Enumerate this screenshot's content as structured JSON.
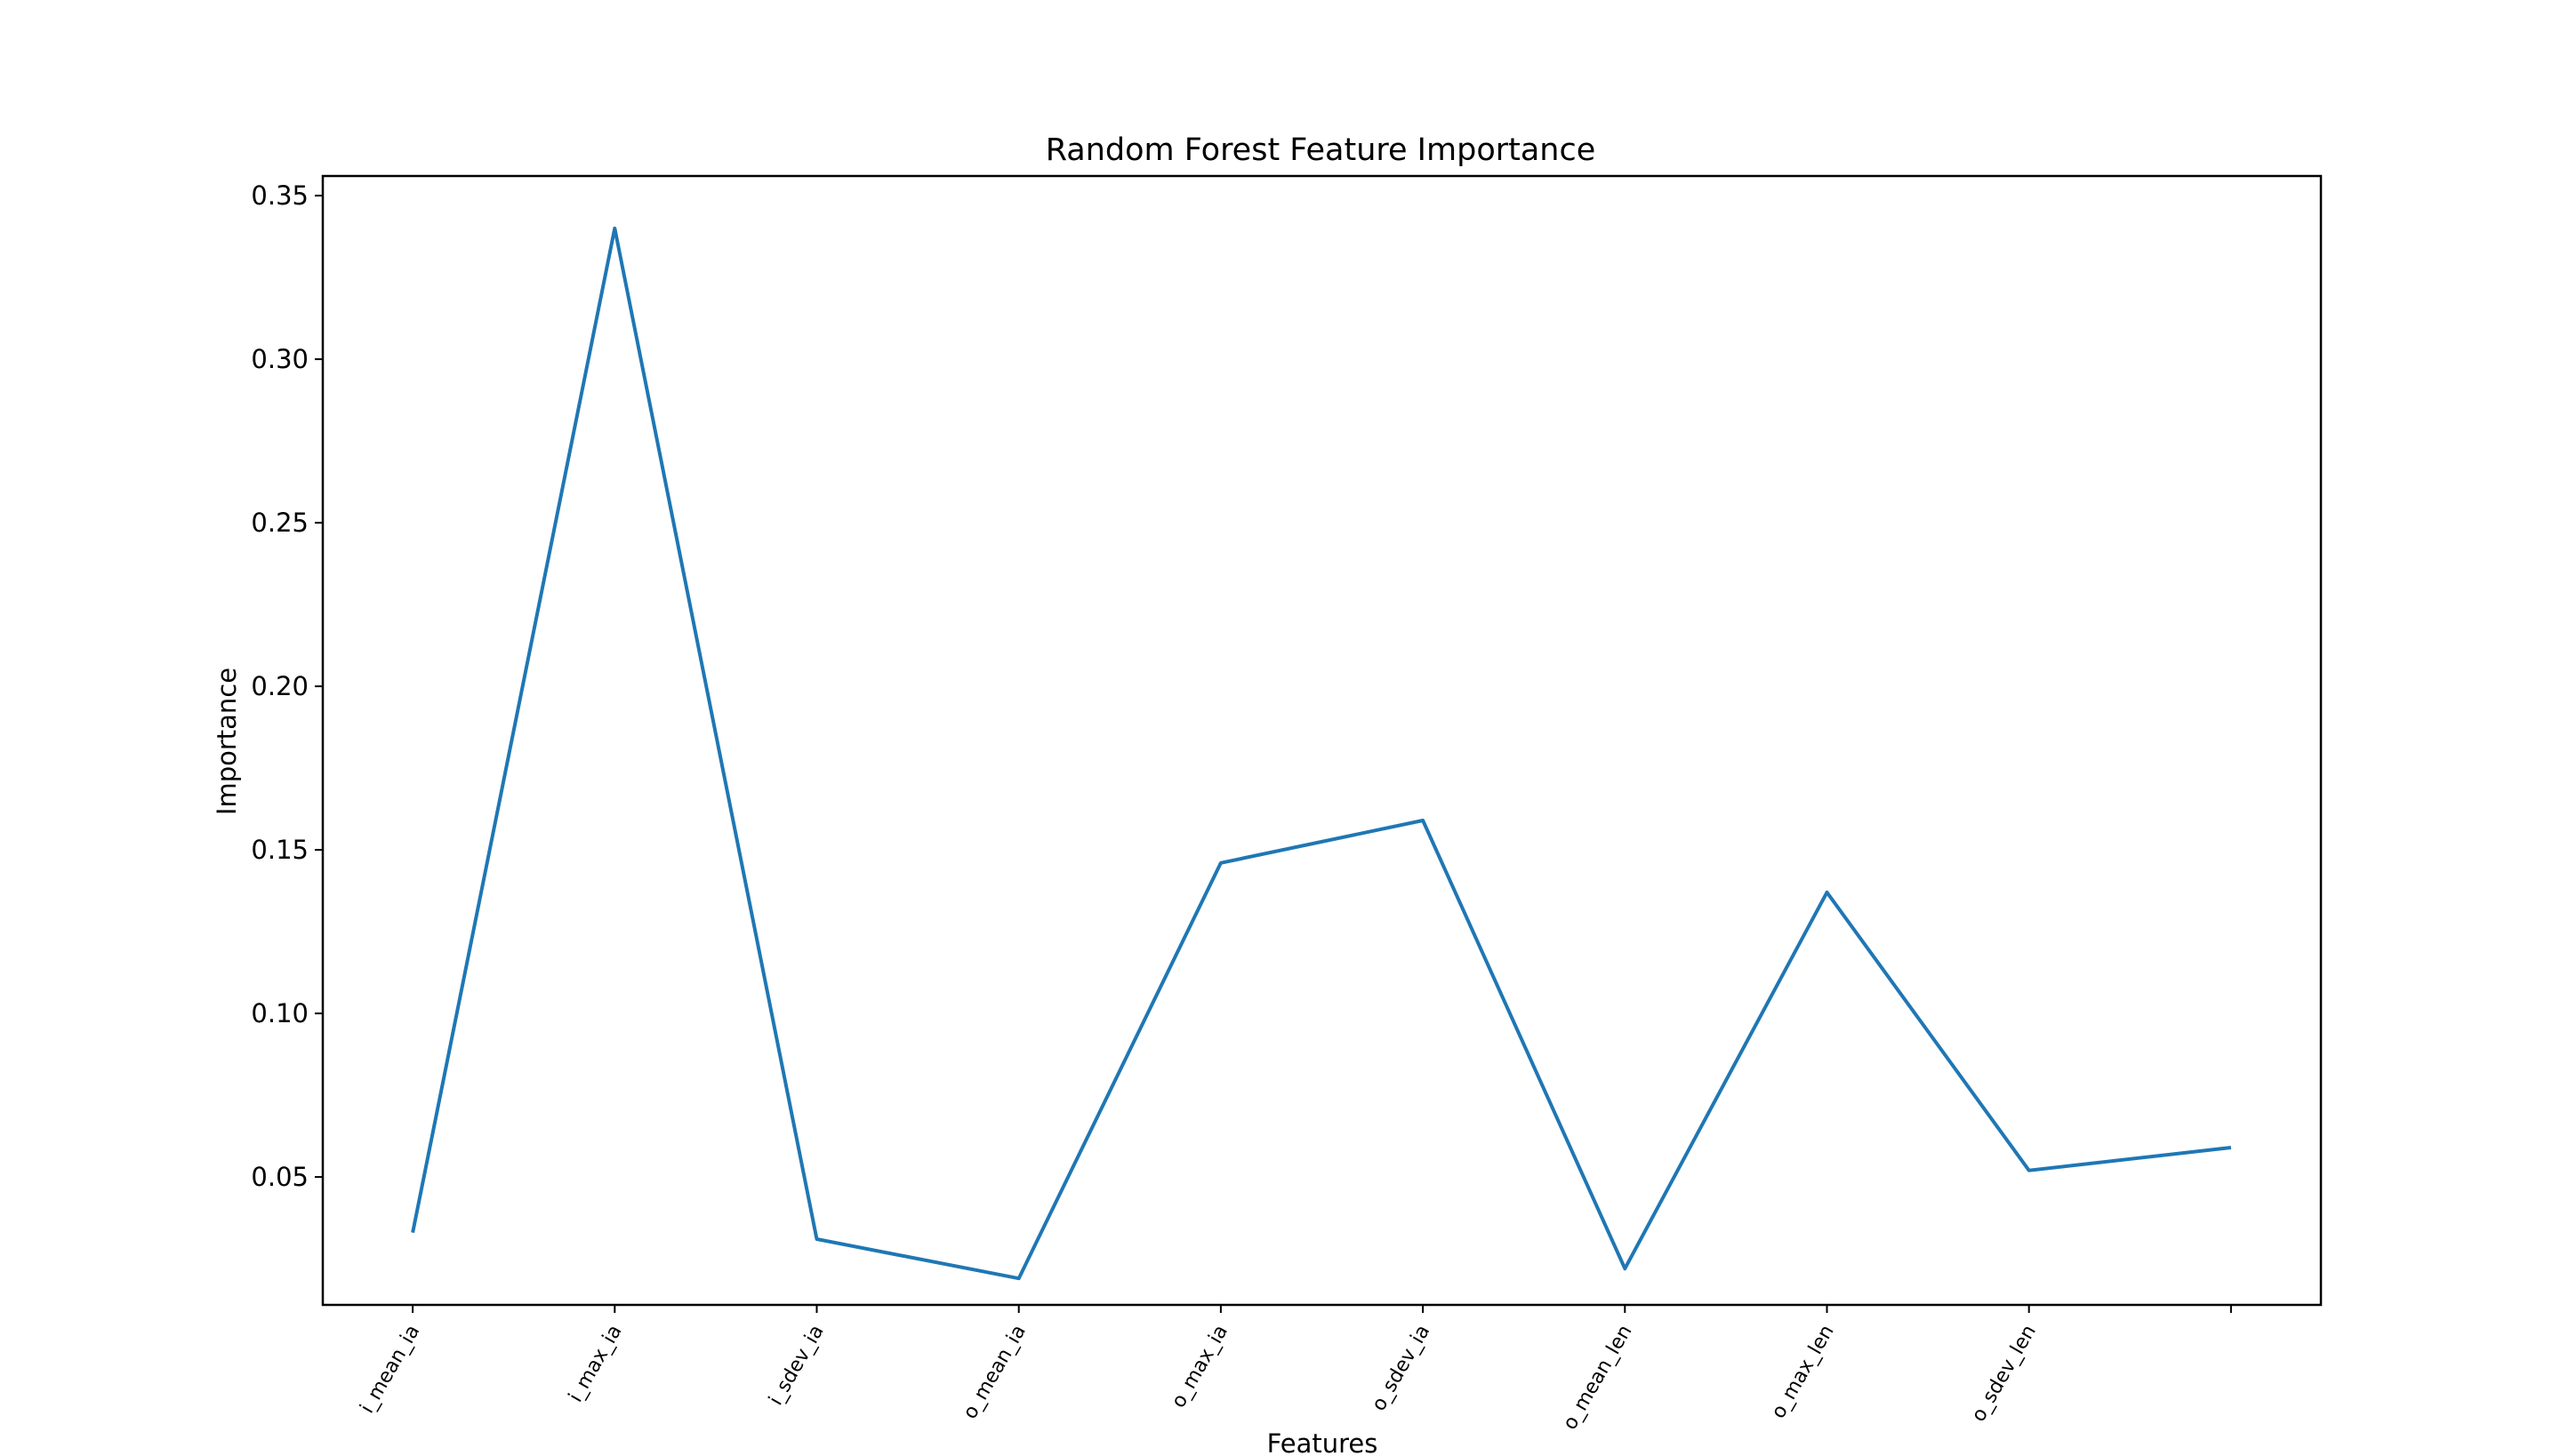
{
  "chart_data": {
    "type": "line",
    "title": "Random Forest Feature Importance",
    "xlabel": "Features",
    "ylabel": "Importance",
    "categories": [
      "i_mean_ia",
      "i_max_ia",
      "i_sdev_ia",
      "o_mean_ia",
      "o_max_ia",
      "o_sdev_ia",
      "o_mean_len",
      "o_max_len",
      "o_sdev_len",
      ""
    ],
    "series": [
      {
        "values": [
          0.033,
          0.34,
          0.031,
          0.019,
          0.146,
          0.159,
          0.022,
          0.137,
          0.052,
          0.059
        ],
        "color": "#1f77b4"
      }
    ],
    "ylim": [
      0.0109,
      0.356
    ],
    "yticks": [
      0.05,
      0.1,
      0.15,
      0.2,
      0.25,
      0.3,
      0.35
    ],
    "ytick_labels": [
      "0.05",
      "0.10",
      "0.15",
      "0.20",
      "0.25",
      "0.30",
      "0.35"
    ],
    "grid": false,
    "legend": "none"
  }
}
